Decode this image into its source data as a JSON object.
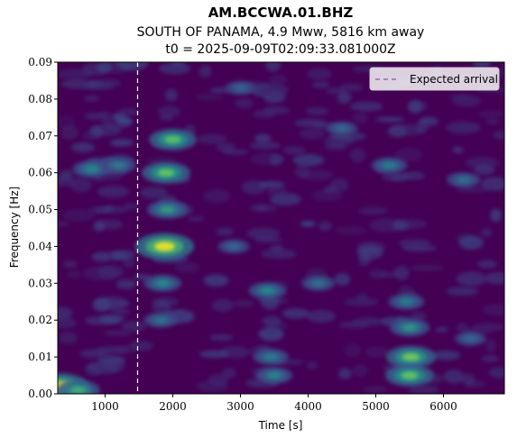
{
  "chart_data": {
    "type": "heatmap",
    "title": "AM.BCCWA.01.BHZ",
    "subtitle_lines": [
      "SOUTH OF PANAMA, 4.9 Mww, 5816 km away",
      "t0 = 2025-09-09T02:09:33.081000Z"
    ],
    "xlabel": "Time [s]",
    "ylabel": "Frequency [Hz]",
    "xlim": [
      300,
      6900
    ],
    "ylim": [
      0.0,
      0.09
    ],
    "x_ticks": [
      1000,
      2000,
      3000,
      4000,
      5000,
      6000
    ],
    "x_tick_labels": [
      "1000",
      "2000",
      "3000",
      "4000",
      "5000",
      "6000"
    ],
    "y_ticks": [
      0.0,
      0.01,
      0.02,
      0.03,
      0.04,
      0.05,
      0.06,
      0.07,
      0.08,
      0.09
    ],
    "y_tick_labels": [
      "0.00",
      "0.01",
      "0.02",
      "0.03",
      "0.04",
      "0.05",
      "0.06",
      "0.07",
      "0.08",
      "0.09"
    ],
    "colormap": "viridis",
    "background_color": "#440154",
    "expected_arrival": {
      "time": 1480,
      "label": "Expected arrival",
      "color": "#ffffff",
      "style": "dashed"
    },
    "legend_placement": "top-right",
    "energy_blobs": [
      {
        "t": 330,
        "f": 0.002,
        "intensity": 0.85
      },
      {
        "t": 600,
        "f": 0.001,
        "intensity": 0.5
      },
      {
        "t": 1880,
        "f": 0.04,
        "intensity": 0.88
      },
      {
        "t": 1900,
        "f": 0.06,
        "intensity": 0.62
      },
      {
        "t": 2000,
        "f": 0.069,
        "intensity": 0.6
      },
      {
        "t": 1920,
        "f": 0.05,
        "intensity": 0.42
      },
      {
        "t": 1850,
        "f": 0.03,
        "intensity": 0.35
      },
      {
        "t": 1820,
        "f": 0.02,
        "intensity": 0.25
      },
      {
        "t": 800,
        "f": 0.061,
        "intensity": 0.35
      },
      {
        "t": 1200,
        "f": 0.062,
        "intensity": 0.28
      },
      {
        "t": 5520,
        "f": 0.01,
        "intensity": 0.65
      },
      {
        "t": 5500,
        "f": 0.005,
        "intensity": 0.62
      },
      {
        "t": 5500,
        "f": 0.018,
        "intensity": 0.4
      },
      {
        "t": 5450,
        "f": 0.025,
        "intensity": 0.3
      },
      {
        "t": 3400,
        "f": 0.028,
        "intensity": 0.35
      },
      {
        "t": 3450,
        "f": 0.01,
        "intensity": 0.3
      },
      {
        "t": 3500,
        "f": 0.005,
        "intensity": 0.32
      },
      {
        "t": 5200,
        "f": 0.062,
        "intensity": 0.3
      },
      {
        "t": 6300,
        "f": 0.058,
        "intensity": 0.25
      },
      {
        "t": 4150,
        "f": 0.03,
        "intensity": 0.25
      },
      {
        "t": 2900,
        "f": 0.04,
        "intensity": 0.2
      },
      {
        "t": 4500,
        "f": 0.072,
        "intensity": 0.2
      },
      {
        "t": 3000,
        "f": 0.083,
        "intensity": 0.18
      },
      {
        "t": 6400,
        "f": 0.015,
        "intensity": 0.2
      }
    ]
  }
}
